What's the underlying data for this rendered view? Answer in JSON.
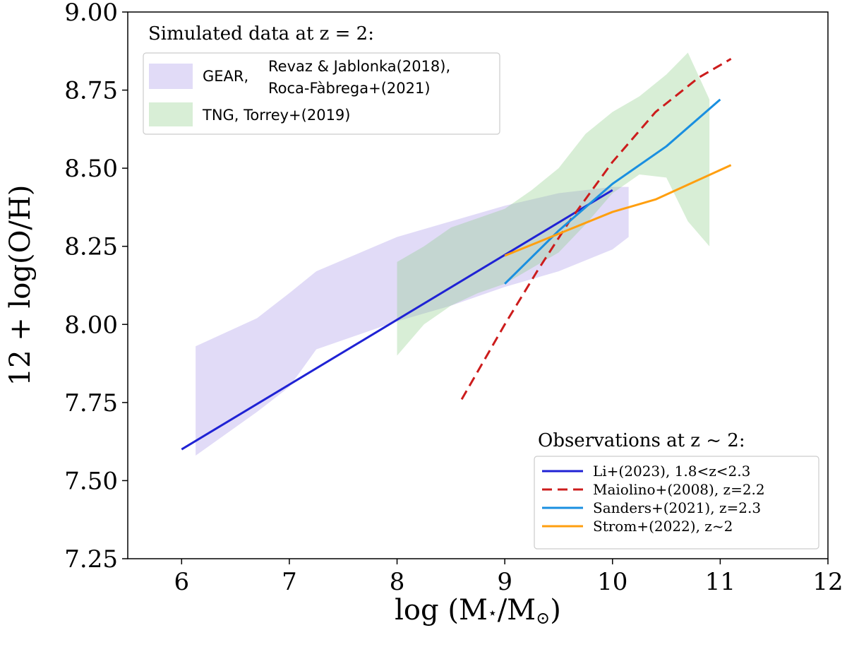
{
  "chart_data": {
    "type": "line",
    "xlabel": "log (M⋆/M⊙)",
    "xlabel_parts": {
      "prefix": "log (M",
      "star": "⋆",
      "mid": "/M",
      "sun": "⊙",
      "suffix": ")"
    },
    "ylabel": "12 + log(O/H)",
    "xlim": [
      5.5,
      12
    ],
    "ylim": [
      7.25,
      9.0
    ],
    "xticks": [
      6,
      7,
      8,
      9,
      10,
      11,
      12
    ],
    "xtick_labels": [
      "6",
      "7",
      "8",
      "9",
      "10",
      "11",
      "12"
    ],
    "yticks": [
      7.25,
      7.5,
      7.75,
      8.0,
      8.25,
      8.5,
      8.75,
      9.0
    ],
    "ytick_labels": [
      "7.25",
      "7.50",
      "7.75",
      "8.00",
      "8.25",
      "8.50",
      "8.75",
      "9.00"
    ],
    "bands": [
      {
        "name": "GEAR",
        "color": "#9b88e3",
        "opacity": 0.3,
        "x": [
          6.13,
          6.7,
          7.0,
          7.25,
          8.0,
          8.5,
          9.0,
          9.5,
          10.0,
          10.15
        ],
        "upper": [
          7.93,
          8.02,
          8.1,
          8.17,
          8.28,
          8.33,
          8.38,
          8.42,
          8.44,
          8.44
        ],
        "lower": [
          7.58,
          7.72,
          7.8,
          7.92,
          8.01,
          8.06,
          8.12,
          8.17,
          8.24,
          8.28
        ]
      },
      {
        "name": "TNG",
        "color": "#8fcf8a",
        "opacity": 0.35,
        "x": [
          8.0,
          8.25,
          8.5,
          8.75,
          9.0,
          9.25,
          9.5,
          9.75,
          10.0,
          10.25,
          10.5,
          10.7,
          10.9
        ],
        "upper": [
          8.2,
          8.25,
          8.31,
          8.34,
          8.37,
          8.43,
          8.5,
          8.61,
          8.68,
          8.73,
          8.8,
          8.87,
          8.72
        ],
        "lower": [
          7.9,
          8.0,
          8.06,
          8.1,
          8.13,
          8.18,
          8.23,
          8.32,
          8.42,
          8.48,
          8.47,
          8.33,
          8.25
        ]
      }
    ],
    "series": [
      {
        "name": "Li+(2023), 1.8<z<2.3",
        "color": "#1f22d4",
        "dash": "none",
        "x": [
          6.0,
          10.0
        ],
        "y": [
          7.6,
          8.43
        ]
      },
      {
        "name": "Maiolino+(2008), z=2.2",
        "color": "#cc1c1c",
        "dash": "14,8",
        "x": [
          8.6,
          9.0,
          9.3,
          9.6,
          10.0,
          10.4,
          10.8,
          11.1
        ],
        "y": [
          7.76,
          8.0,
          8.17,
          8.33,
          8.52,
          8.68,
          8.79,
          8.85
        ]
      },
      {
        "name": "Sanders+(2021), z=2.3",
        "color": "#1a8fe0",
        "dash": "none",
        "x": [
          9.0,
          9.5,
          10.0,
          10.5,
          11.0
        ],
        "y": [
          8.13,
          8.3,
          8.45,
          8.57,
          8.72
        ]
      },
      {
        "name": "Strom+(2022), z~2",
        "color": "#ff9f10",
        "dash": "none",
        "x": [
          9.0,
          9.5,
          10.0,
          10.4,
          11.1
        ],
        "y": [
          8.22,
          8.29,
          8.36,
          8.4,
          8.51
        ]
      }
    ]
  },
  "legend_sim": {
    "title": "Simulated data at z = 2:",
    "gear_label": "GEAR,",
    "gear_ref_1": "Revaz & Jablonka(2018),",
    "gear_ref_2": "Roca-Fàbrega+(2021)",
    "tng_label": "TNG, Torrey+(2019)"
  },
  "legend_obs": {
    "title": "Observations at z  ~  2:"
  }
}
